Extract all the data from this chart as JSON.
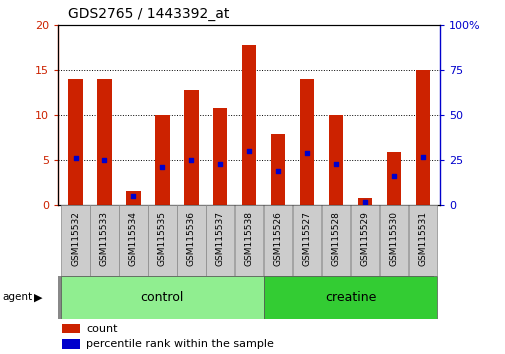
{
  "title": "GDS2765 / 1443392_at",
  "samples": [
    "GSM115532",
    "GSM115533",
    "GSM115534",
    "GSM115535",
    "GSM115536",
    "GSM115537",
    "GSM115538",
    "GSM115526",
    "GSM115527",
    "GSM115528",
    "GSM115529",
    "GSM115530",
    "GSM115531"
  ],
  "counts": [
    14.0,
    14.0,
    1.6,
    10.0,
    12.8,
    10.8,
    17.8,
    7.9,
    14.0,
    10.0,
    0.8,
    5.9,
    15.0
  ],
  "percentile_ranks": [
    26,
    25,
    5,
    21,
    25,
    23,
    30,
    19,
    29,
    23,
    2,
    16,
    27
  ],
  "groups": [
    {
      "label": "control",
      "indices": [
        0,
        1,
        2,
        3,
        4,
        5,
        6
      ],
      "color": "#90EE90"
    },
    {
      "label": "creatine",
      "indices": [
        7,
        8,
        9,
        10,
        11,
        12
      ],
      "color": "#33CC33"
    }
  ],
  "agent_label": "agent",
  "bar_color": "#CC2200",
  "percentile_color": "#0000CC",
  "ylim_left": [
    0,
    20
  ],
  "ylim_right": [
    0,
    100
  ],
  "yticks_left": [
    0,
    5,
    10,
    15,
    20
  ],
  "yticks_right": [
    0,
    25,
    50,
    75,
    100
  ],
  "ytick_labels_right": [
    "0",
    "25",
    "50",
    "75",
    "100%"
  ],
  "background_color": "#ffffff",
  "plot_bg": "#ffffff",
  "grid_color": "#000000",
  "bar_width": 0.5,
  "legend_count_label": "count",
  "legend_pct_label": "percentile rank within the sample",
  "tick_box_color": "#cccccc",
  "tick_box_edge": "#888888"
}
